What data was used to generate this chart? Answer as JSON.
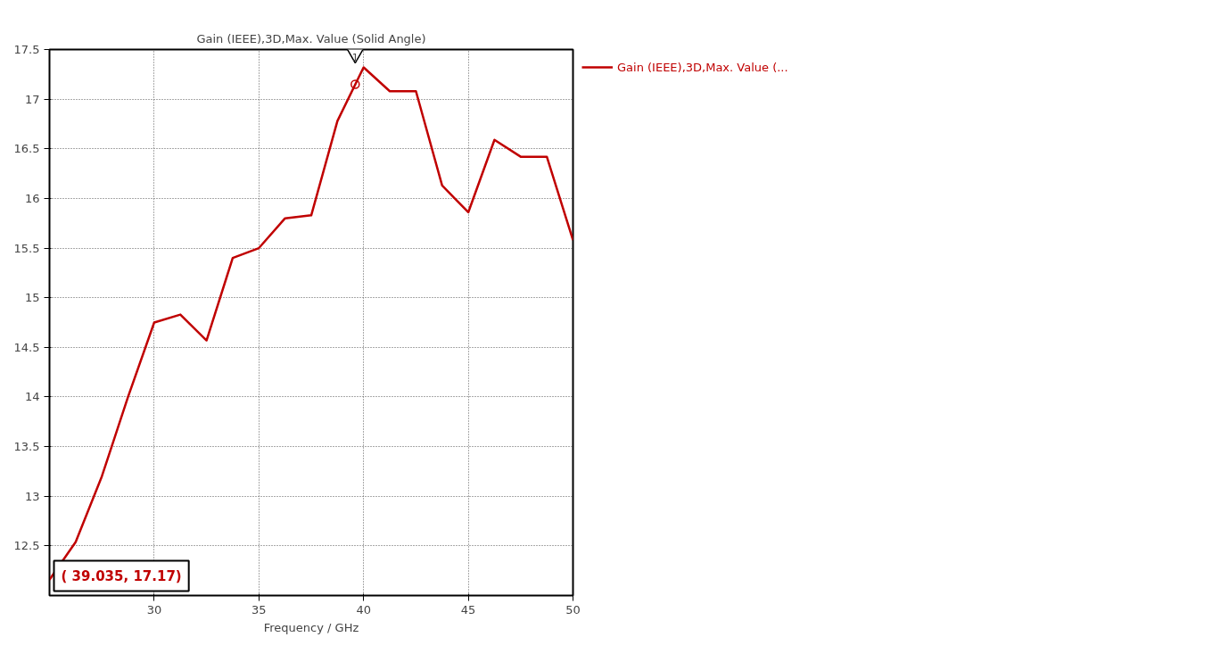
{
  "chart_data": {
    "type": "line",
    "title": "Gain (IEEE),3D,Max. Value (Solid Angle)",
    "xlabel": "Frequency / GHz",
    "x": [
      25,
      26.25,
      27.5,
      28.75,
      30,
      31.25,
      32.5,
      33.75,
      35,
      36.25,
      37.5,
      38.75,
      40,
      41.25,
      42.5,
      43.75,
      45,
      46.25,
      47.5,
      48.75,
      50
    ],
    "series": [
      {
        "name": "Gain (IEEE),3D,Max. Value (...",
        "color": "#c00000",
        "values": [
          12.16,
          12.54,
          13.2,
          14.0,
          14.75,
          14.83,
          14.57,
          15.4,
          15.5,
          15.8,
          15.83,
          16.78,
          17.32,
          17.08,
          17.08,
          16.13,
          15.86,
          16.59,
          16.42,
          16.42,
          15.58
        ]
      }
    ],
    "xlim": [
      25,
      50
    ],
    "ylim": [
      12,
      17.5
    ],
    "xticks": [
      30,
      35,
      40,
      45,
      50
    ],
    "yticks": [
      12.5,
      13,
      13.5,
      14,
      14.5,
      15,
      15.5,
      16,
      16.5,
      17,
      17.5
    ],
    "annotations": [
      {
        "text": "1",
        "x": 39.6,
        "y": 17.15
      },
      "( 39.035, 17.17)"
    ],
    "grid": true,
    "legend": "top right",
    "marker": "none",
    "line_style": "solid"
  }
}
